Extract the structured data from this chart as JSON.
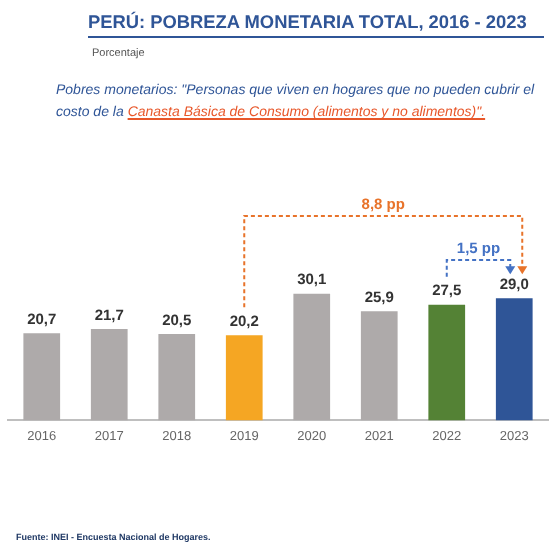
{
  "chart_data": {
    "type": "bar",
    "title": "PERÚ:  POBREZA MONETARIA TOTAL, 2016 - 2023",
    "subtitle": "Porcentaje",
    "categories": [
      "2016",
      "2017",
      "2018",
      "2019",
      "2020",
      "2021",
      "2022",
      "2023"
    ],
    "values": [
      20.7,
      21.7,
      20.5,
      20.2,
      30.1,
      25.9,
      27.5,
      29.0
    ],
    "colors": [
      "#aeaaaa",
      "#aeaaaa",
      "#aeaaaa",
      "#f5a623",
      "#aeaaaa",
      "#aeaaaa",
      "#548235",
      "#2f5597"
    ],
    "value_labels": [
      "20,7",
      "21,7",
      "20,5",
      "20,2",
      "30,1",
      "25,9",
      "27,5",
      "29,0"
    ],
    "annotations": [
      "Pobres monetarios: \"Personas que viven en hogares que no pueden cubrir el costo de la",
      "Canasta Básica de Consumo (alimentos y no alimentos)\".",
      "8,8 pp",
      "1,5 pp",
      "Fuente: INEI - Encuesta Nacional de Hogares."
    ],
    "grid": false,
    "legend": false
  }
}
